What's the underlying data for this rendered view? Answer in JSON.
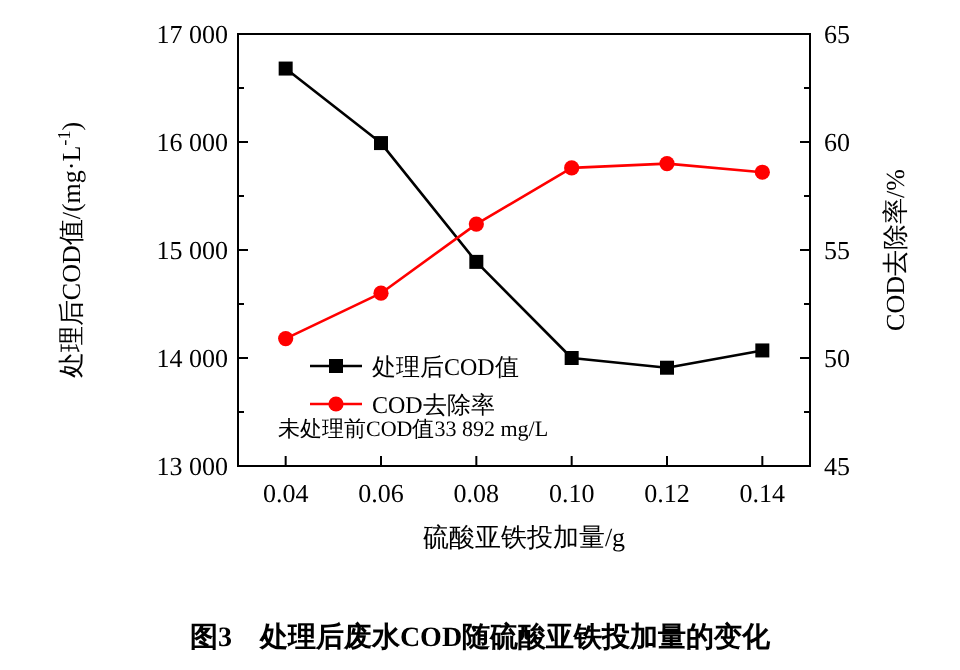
{
  "chart_data": {
    "type": "line",
    "title": "图3　处理后废水COD随硫酸亚铁投加量的变化",
    "xlabel": "硫酸亚铁投加量/g",
    "ylabel": "处理后COD值/(mg·L$^{-1}$)",
    "y2label": "COD去除率/%",
    "x": [
      0.04,
      0.06,
      0.08,
      0.1,
      0.12,
      0.14
    ],
    "series": [
      {
        "name": "处理后COD值",
        "color": "#000000",
        "marker": "square",
        "values": [
          16680,
          15990,
          14890,
          14000,
          13910,
          14070
        ]
      },
      {
        "name": "COD去除率",
        "color": "#ff0000",
        "marker": "circle",
        "axis": "y2",
        "values": [
          50.9,
          53.0,
          56.2,
          58.8,
          59.0,
          58.6
        ]
      }
    ],
    "xlim": [
      0.03,
      0.15
    ],
    "xticks": [
      {
        "value": 0.04,
        "label": "0.04"
      },
      {
        "value": 0.06,
        "label": "0.06"
      },
      {
        "value": 0.08,
        "label": "0.08"
      },
      {
        "value": 0.1,
        "label": "0.10"
      },
      {
        "value": 0.12,
        "label": "0.12"
      },
      {
        "value": 0.14,
        "label": "0.14"
      }
    ],
    "ylim": [
      13000,
      17000
    ],
    "yticks": [
      {
        "value": 13000,
        "label": "13 000"
      },
      {
        "value": 13500,
        "label": null
      },
      {
        "value": 14000,
        "label": "14 000"
      },
      {
        "value": 14500,
        "label": null
      },
      {
        "value": 15000,
        "label": "15 000"
      },
      {
        "value": 15500,
        "label": null
      },
      {
        "value": 16000,
        "label": "16 000"
      },
      {
        "value": 16500,
        "label": null
      },
      {
        "value": 17000,
        "label": "17 000"
      }
    ],
    "y2lim": [
      45,
      65
    ],
    "y2ticks": [
      45,
      {
        "value": 47.5,
        "label": null
      },
      50,
      {
        "value": 52.5,
        "label": null
      },
      55,
      {
        "value": 57.5,
        "label": null
      },
      60,
      {
        "value": 62.5,
        "label": null
      },
      65
    ],
    "legend": "bottom left",
    "annotations": [
      "未处理前COD值33 892 mg/L"
    ]
  }
}
